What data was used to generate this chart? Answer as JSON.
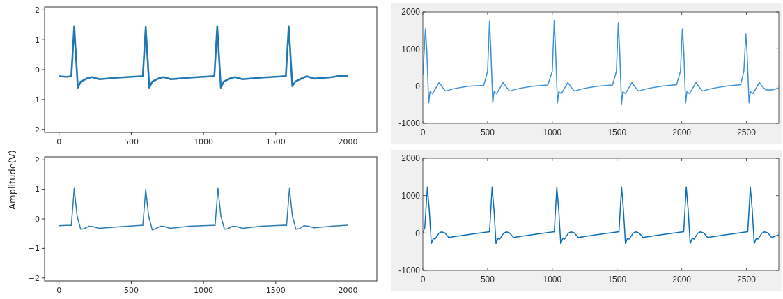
{
  "chart_data": [
    {
      "type": "line",
      "xlim": [
        -100,
        2200
      ],
      "ylim": [
        -2.1,
        2.1
      ],
      "xticks": [
        0,
        500,
        1000,
        1500,
        2000
      ],
      "yticks": [
        -2,
        -1,
        0,
        1,
        2
      ],
      "grid": false,
      "series": [
        {
          "color": "#1f77b4",
          "x": [
            0,
            50,
            85,
            105,
            130,
            150,
            200,
            230,
            280,
            405,
            565,
            580,
            600,
            625,
            645,
            695,
            725,
            775,
            900,
            1060,
            1075,
            1095,
            1120,
            1140,
            1190,
            1220,
            1270,
            1395,
            1555,
            1570,
            1590,
            1615,
            1635,
            1685,
            1715,
            1765,
            1890,
            1950,
            2000
          ],
          "values": [
            -0.22,
            -0.24,
            -0.22,
            1.45,
            -0.6,
            -0.4,
            -0.28,
            -0.25,
            -0.32,
            -0.27,
            -0.22,
            -0.22,
            1.42,
            -0.6,
            -0.4,
            -0.28,
            -0.25,
            -0.32,
            -0.27,
            -0.22,
            -0.22,
            1.45,
            -0.6,
            -0.4,
            -0.28,
            -0.25,
            -0.32,
            -0.27,
            -0.22,
            -0.22,
            1.45,
            -0.55,
            -0.4,
            -0.28,
            -0.22,
            -0.3,
            -0.25,
            -0.2,
            -0.22
          ]
        }
      ]
    },
    {
      "type": "line",
      "ylabel": "Amplitude(V)",
      "xlim": [
        -100,
        2200
      ],
      "ylim": [
        -2.1,
        2.1
      ],
      "xticks": [
        0,
        500,
        1000,
        1500,
        2000
      ],
      "yticks": [
        -2,
        -1,
        0,
        1,
        2
      ],
      "grid": false,
      "series": [
        {
          "color": "#2b7bb0",
          "x": [
            0,
            50,
            85,
            105,
            125,
            150,
            175,
            205,
            235,
            275,
            405,
            565,
            580,
            600,
            620,
            645,
            670,
            700,
            730,
            770,
            900,
            1060,
            1080,
            1100,
            1120,
            1145,
            1170,
            1200,
            1230,
            1270,
            1400,
            1560,
            1575,
            1595,
            1615,
            1640,
            1665,
            1695,
            1725,
            1765,
            1900,
            2000
          ],
          "values": [
            -0.23,
            -0.22,
            -0.22,
            1.03,
            0.1,
            -0.35,
            -0.33,
            -0.25,
            -0.26,
            -0.32,
            -0.27,
            -0.22,
            -0.22,
            1.0,
            0.1,
            -0.37,
            -0.33,
            -0.25,
            -0.26,
            -0.32,
            -0.25,
            -0.22,
            -0.22,
            1.03,
            0.1,
            -0.35,
            -0.33,
            -0.25,
            -0.26,
            -0.32,
            -0.25,
            -0.21,
            -0.22,
            1.03,
            0.1,
            -0.35,
            -0.33,
            -0.23,
            -0.25,
            -0.3,
            -0.24,
            -0.21
          ]
        }
      ]
    },
    {
      "type": "line",
      "xlim": [
        0,
        2750
      ],
      "ylim": [
        -1000,
        2000
      ],
      "xticks": [
        0,
        500,
        1000,
        1500,
        2000,
        2500
      ],
      "yticks": [
        -1000,
        0,
        1000,
        2000
      ],
      "grid": false,
      "series": [
        {
          "color": "#3a8fd6",
          "x": [
            0,
            20,
            30,
            45,
            55,
            75,
            100,
            125,
            145,
            175,
            250,
            350,
            470,
            500,
            515,
            525,
            540,
            550,
            570,
            595,
            620,
            640,
            670,
            745,
            845,
            965,
            1000,
            1015,
            1025,
            1040,
            1050,
            1070,
            1095,
            1120,
            1140,
            1170,
            1245,
            1345,
            1465,
            1495,
            1510,
            1520,
            1535,
            1545,
            1565,
            1590,
            1615,
            1635,
            1665,
            1740,
            1840,
            1960,
            1990,
            2005,
            2015,
            2030,
            2040,
            2060,
            2085,
            2110,
            2130,
            2160,
            2235,
            2335,
            2455,
            2480,
            2495,
            2505,
            2520,
            2530,
            2550,
            2575,
            2600,
            2620,
            2650,
            2700,
            2750
          ],
          "values": [
            300,
            1550,
            1000,
            -450,
            -150,
            -200,
            -50,
            100,
            0,
            -130,
            -60,
            0,
            20,
            400,
            1750,
            1000,
            -450,
            -150,
            -200,
            -50,
            100,
            0,
            -130,
            -60,
            0,
            30,
            400,
            1780,
            1000,
            -450,
            -150,
            -200,
            -50,
            100,
            0,
            -130,
            -60,
            0,
            30,
            400,
            1700,
            1000,
            -480,
            -150,
            -200,
            -50,
            100,
            0,
            -130,
            -60,
            0,
            40,
            400,
            1550,
            1000,
            -450,
            -150,
            -200,
            -50,
            100,
            0,
            -130,
            -60,
            0,
            40,
            400,
            1400,
            900,
            -450,
            -150,
            -200,
            -50,
            100,
            0,
            -100,
            -100,
            -50
          ]
        }
      ]
    },
    {
      "type": "line",
      "xlim": [
        0,
        2750
      ],
      "ylim": [
        -1000,
        2000
      ],
      "xticks": [
        0,
        500,
        1000,
        1500,
        2000,
        2500
      ],
      "yticks": [
        -1000,
        0,
        1000,
        2000
      ],
      "grid": false,
      "series": [
        {
          "color": "#0c6db8",
          "x": [
            0,
            15,
            35,
            50,
            65,
            80,
            95,
            125,
            145,
            170,
            200,
            335,
            505,
            515,
            535,
            550,
            565,
            580,
            595,
            625,
            645,
            670,
            700,
            835,
            1005,
            1015,
            1035,
            1050,
            1065,
            1080,
            1095,
            1125,
            1145,
            1170,
            1200,
            1335,
            1505,
            1515,
            1535,
            1550,
            1565,
            1580,
            1595,
            1625,
            1645,
            1670,
            1700,
            1835,
            2005,
            2015,
            2035,
            2050,
            2065,
            2080,
            2095,
            2125,
            2145,
            2170,
            2200,
            2335,
            2500,
            2510,
            2530,
            2545,
            2560,
            2575,
            2590,
            2620,
            2640,
            2665,
            2695,
            2750
          ],
          "values": [
            0,
            150,
            1230,
            600,
            -280,
            -150,
            -160,
            0,
            30,
            0,
            -120,
            -50,
            30,
            30,
            1230,
            600,
            -280,
            -150,
            -160,
            0,
            30,
            0,
            -120,
            -50,
            30,
            30,
            1230,
            600,
            -280,
            -150,
            -160,
            0,
            30,
            0,
            -120,
            -50,
            30,
            30,
            1230,
            600,
            -280,
            -150,
            -160,
            0,
            30,
            0,
            -120,
            -50,
            30,
            30,
            1230,
            600,
            -280,
            -150,
            -160,
            0,
            30,
            0,
            -120,
            -50,
            30,
            30,
            1230,
            600,
            -280,
            -150,
            -160,
            0,
            30,
            0,
            -120,
            -50
          ]
        }
      ]
    }
  ]
}
